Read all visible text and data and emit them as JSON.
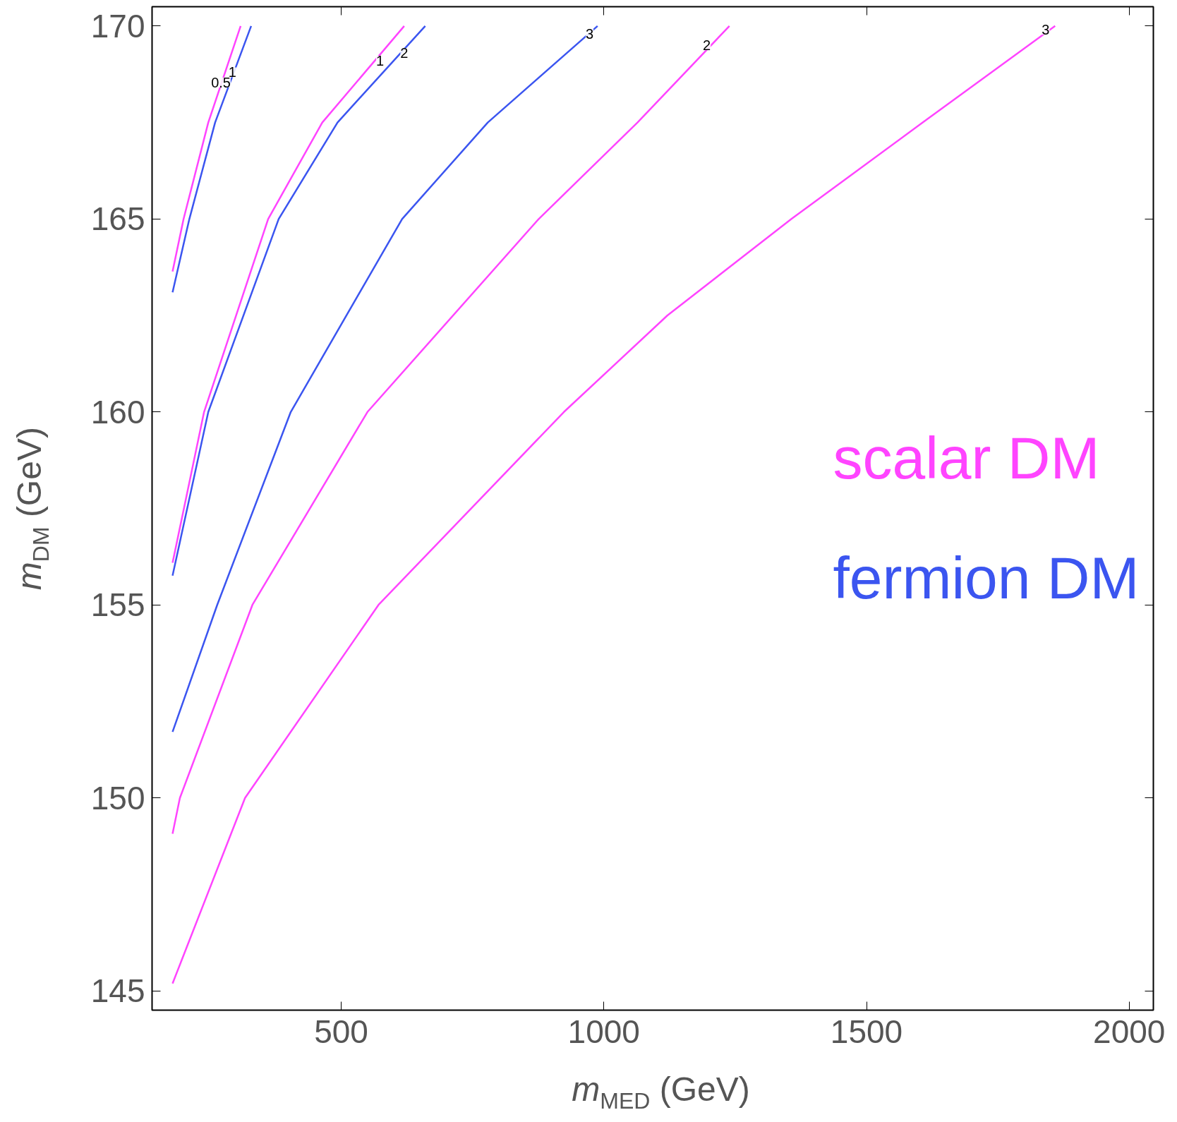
{
  "chart_data": {
    "type": "line",
    "xlabel": "m$_{MED}$ (GeV)",
    "ylabel": "m$_{DM}$ (GeV)",
    "xlim": [
      140,
      2046
    ],
    "ylim": [
      144.5,
      170.5
    ],
    "xticks": [
      500,
      1000,
      1500,
      2000
    ],
    "yticks": [
      145,
      150,
      155,
      160,
      165,
      170
    ],
    "grid": false,
    "legend": "right",
    "marker": "none",
    "line_style": "solid",
    "series": [
      {
        "name": "scalar DM",
        "color": "#ff44ff",
        "x": [
          179,
          200,
          247,
          308.6
        ],
        "values": [
          163.64,
          165,
          167.5,
          170
        ]
      },
      {
        "name": "fermion DM",
        "color": "#3b55f0",
        "x": [
          179,
          211,
          260,
          328.6
        ],
        "values": [
          163.1,
          165,
          167.5,
          170
        ]
      },
      {
        "color": "#ff44ff",
        "x": [
          179,
          239,
          361,
          464,
          620
        ],
        "values": [
          156.09,
          160,
          165,
          167.5,
          170
        ]
      },
      {
        "color": "#3b55f0",
        "x": [
          179,
          247,
          381,
          493,
          660
        ],
        "values": [
          155.76,
          160,
          165,
          167.5,
          170
        ]
      },
      {
        "color": "#3b55f0",
        "x": [
          179,
          264,
          404,
          616,
          779,
          988
        ],
        "values": [
          151.71,
          155,
          160,
          165,
          167.5,
          170
        ]
      },
      {
        "color": "#ff44ff",
        "x": [
          179,
          193,
          331,
          550,
          876,
          1064,
          1239
        ],
        "values": [
          149.07,
          150,
          155,
          160,
          165,
          167.5,
          170
        ]
      },
      {
        "color": "#ff44ff",
        "x": [
          179,
          317,
          571,
          924,
          1121,
          1357,
          1607,
          1859
        ],
        "values": [
          145.19,
          150,
          155,
          160,
          162.5,
          165,
          167.5,
          170
        ]
      }
    ],
    "annotations": [
      {
        "text": "0.5",
        "x": 271,
        "y": 168.54
      },
      {
        "text": "1",
        "x": 293,
        "y": 168.8
      },
      {
        "text": "1",
        "x": 574,
        "y": 169.1
      },
      {
        "text": "2",
        "x": 620,
        "y": 169.3
      },
      {
        "text": "3",
        "x": 973,
        "y": 169.8
      },
      {
        "text": "2",
        "x": 1196,
        "y": 169.5
      },
      {
        "text": "3",
        "x": 1841,
        "y": 169.9
      }
    ]
  }
}
